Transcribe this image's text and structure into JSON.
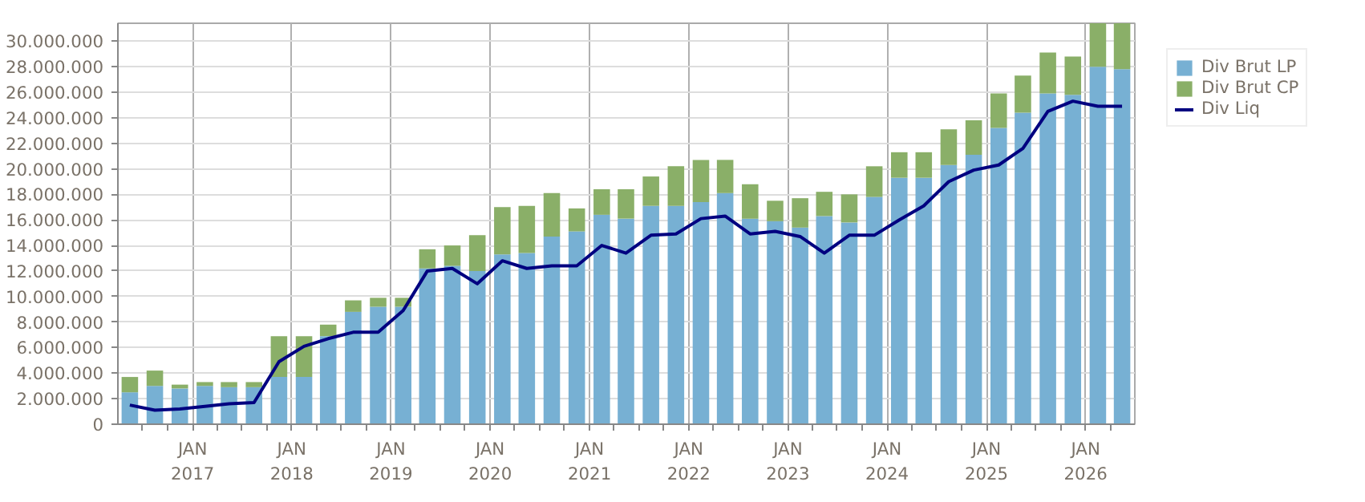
{
  "chart_data": {
    "type": "bar",
    "stacked": true,
    "x": [
      "2016-05-15",
      "2016-08-15",
      "2016-11-15",
      "2017-02-15",
      "2017-05-15",
      "2017-08-15",
      "2017-11-15",
      "2018-02-15",
      "2018-05-15",
      "2018-08-15",
      "2018-11-15",
      "2019-02-15",
      "2019-05-15",
      "2019-08-15",
      "2019-11-15",
      "2020-02-15",
      "2020-05-15",
      "2020-08-15",
      "2020-11-15",
      "2021-02-15",
      "2021-05-15",
      "2021-08-15",
      "2021-11-15",
      "2022-02-15",
      "2022-05-15",
      "2022-08-15",
      "2022-11-15",
      "2023-02-15",
      "2023-05-15",
      "2023-08-15",
      "2023-11-15",
      "2024-02-15",
      "2024-05-15",
      "2024-08-15",
      "2024-11-15",
      "2025-02-15",
      "2025-05-15",
      "2025-08-15",
      "2025-11-15",
      "2026-02-15",
      "2026-05-15"
    ],
    "series": [
      {
        "name": "Div Brut LP",
        "color": "#77b0d3",
        "values": [
          2500000,
          3000000,
          2800000,
          3000000,
          2900000,
          2900000,
          3700000,
          3700000,
          6900000,
          8800000,
          9200000,
          9200000,
          12200000,
          12400000,
          12000000,
          13300000,
          13400000,
          14700000,
          15100000,
          16400000,
          16100000,
          17100000,
          17100000,
          17400000,
          18100000,
          16100000,
          15900000,
          15400000,
          16300000,
          15800000,
          17800000,
          19300000,
          19300000,
          20300000,
          21100000,
          23200000,
          24400000,
          25900000,
          25800000,
          28000000,
          27800000
        ]
      },
      {
        "name": "Div Brut CP",
        "color": "#8aaf68",
        "values": [
          1200000,
          1200000,
          300000,
          300000,
          400000,
          400000,
          3200000,
          3200000,
          900000,
          900000,
          700000,
          700000,
          1500000,
          1600000,
          2800000,
          3700000,
          3700000,
          3400000,
          1800000,
          2000000,
          2300000,
          2300000,
          3100000,
          3300000,
          2600000,
          2700000,
          1600000,
          2300000,
          1900000,
          2200000,
          2400000,
          2000000,
          2000000,
          2800000,
          2700000,
          2700000,
          2900000,
          3200000,
          3000000,
          3400000,
          3600000
        ]
      },
      {
        "name": "Div Liq",
        "type": "line",
        "color": "#000080",
        "values": [
          1500000,
          1100000,
          1200000,
          1400000,
          1600000,
          1700000,
          4900000,
          6100000,
          6700000,
          7200000,
          7200000,
          8900000,
          12000000,
          12200000,
          11000000,
          12800000,
          12200000,
          12400000,
          12400000,
          14000000,
          13400000,
          14800000,
          14900000,
          16100000,
          16300000,
          14900000,
          15100000,
          14700000,
          13400000,
          14800000,
          14800000,
          16000000,
          17100000,
          19000000,
          19900000,
          20300000,
          21600000,
          24500000,
          25300000,
          24900000,
          24900000
        ]
      }
    ],
    "ylim": [
      0,
      31400000
    ],
    "yticks": [
      0,
      {
        "value": 2000000,
        "label": "2.000.000"
      },
      {
        "value": 4000000,
        "label": "4.000.000"
      },
      {
        "value": 6000000,
        "label": "6.000.000"
      },
      {
        "value": 8000000,
        "label": "8.000.000"
      },
      {
        "value": 10000000,
        "label": "10.000.000"
      },
      {
        "value": 12000000,
        "label": "12.000.000"
      },
      {
        "value": 14000000,
        "label": "14.000.000"
      },
      {
        "value": 16000000,
        "label": "16.000.000"
      },
      {
        "value": 18000000,
        "label": "18.000.000"
      },
      {
        "value": 20000000,
        "label": "20.000.000"
      },
      {
        "value": 22000000,
        "label": "22.000.000"
      },
      {
        "value": 24000000,
        "label": "24.000.000"
      },
      {
        "value": 26000000,
        "label": "26.000.000"
      },
      {
        "value": 28000000,
        "label": "28.000.000"
      },
      {
        "value": 30000000,
        "label": "30.000.000"
      }
    ],
    "xlim": [
      "2016-04-01",
      "2026-07-01"
    ],
    "xticks": [
      {
        "value": "2016-07-01",
        "label": null
      },
      {
        "value": "2016-10-01",
        "label": null
      },
      {
        "value": "2017-01-01",
        "label": "JAN\n2017"
      },
      {
        "value": "2017-04-01",
        "label": null
      },
      {
        "value": "2017-07-01",
        "label": null
      },
      {
        "value": "2017-10-01",
        "label": null
      },
      {
        "value": "2018-01-01",
        "label": "JAN\n2018"
      },
      {
        "value": "2018-04-01",
        "label": null
      },
      {
        "value": "2018-07-01",
        "label": null
      },
      {
        "value": "2018-10-01",
        "label": null
      },
      {
        "value": "2019-01-01",
        "label": "JAN\n2019"
      },
      {
        "value": "2019-04-01",
        "label": null
      },
      {
        "value": "2019-07-01",
        "label": null
      },
      {
        "value": "2019-10-01",
        "label": null
      },
      {
        "value": "2020-01-01",
        "label": "JAN\n2020"
      },
      {
        "value": "2020-04-01",
        "label": null
      },
      {
        "value": "2020-07-01",
        "label": null
      },
      {
        "value": "2020-10-01",
        "label": null
      },
      {
        "value": "2021-01-01",
        "label": "JAN\n2021"
      },
      {
        "value": "2021-04-01",
        "label": null
      },
      {
        "value": "2021-07-01",
        "label": null
      },
      {
        "value": "2021-10-01",
        "label": null
      },
      {
        "value": "2022-01-01",
        "label": "JAN\n2022"
      },
      {
        "value": "2022-04-01",
        "label": null
      },
      {
        "value": "2022-07-01",
        "label": null
      },
      {
        "value": "2022-10-01",
        "label": null
      },
      {
        "value": "2023-01-01",
        "label": "JAN\n2023"
      },
      {
        "value": "2023-04-01",
        "label": null
      },
      {
        "value": "2023-07-01",
        "label": null
      },
      {
        "value": "2023-10-01",
        "label": null
      },
      {
        "value": "2024-01-01",
        "label": "JAN\n2024"
      },
      {
        "value": "2024-04-01",
        "label": null
      },
      {
        "value": "2024-07-01",
        "label": null
      },
      {
        "value": "2024-10-01",
        "label": null
      },
      {
        "value": "2025-01-01",
        "label": "JAN\n2025"
      },
      {
        "value": "2025-04-01",
        "label": null
      },
      {
        "value": "2025-07-01",
        "label": null
      },
      {
        "value": "2025-10-01",
        "label": null
      },
      {
        "value": "2026-01-01",
        "label": "JAN\n2026"
      },
      {
        "value": "2026-04-01",
        "label": null
      }
    ],
    "grid": true,
    "legend": "top right",
    "marker": "none",
    "line_style": "solid"
  }
}
